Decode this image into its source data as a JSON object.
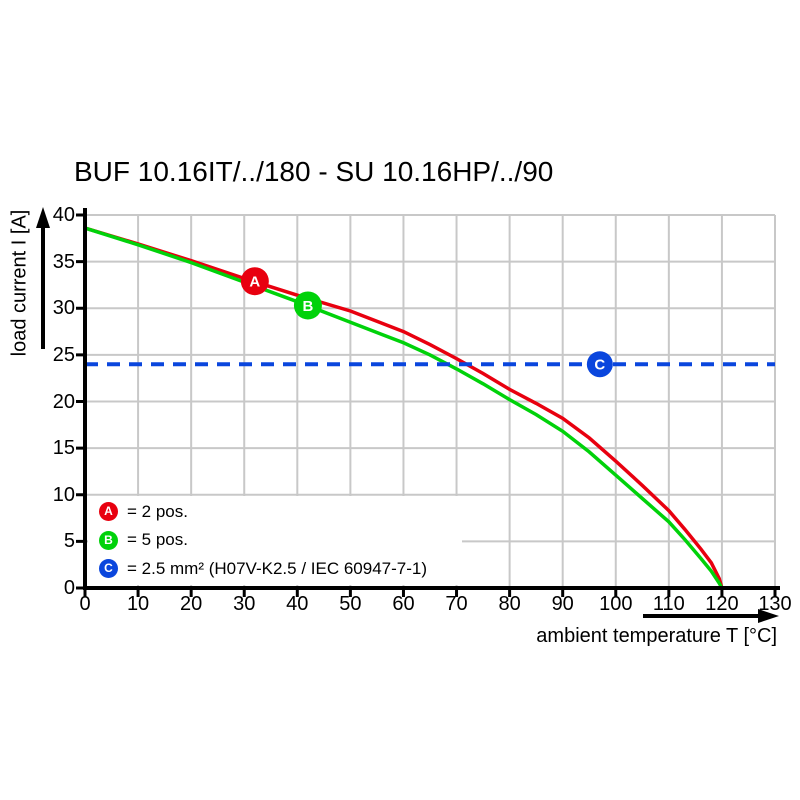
{
  "colors": {
    "red": "#e8000f",
    "green": "#00d20a",
    "blue": "#0a46dd",
    "grid": "#c8c8c8",
    "axis": "#000000",
    "background": "#ffffff"
  },
  "chart_data": {
    "type": "line",
    "title": "BUF 10.16IT/../180 - SU 10.16HP/../90",
    "xlabel": "ambient temperature T [°C]",
    "ylabel": "load current I [A]",
    "xlim": [
      0,
      130
    ],
    "ylim": [
      0,
      40
    ],
    "x_ticks": [
      0,
      10,
      20,
      30,
      40,
      50,
      60,
      70,
      80,
      90,
      100,
      110,
      120,
      130
    ],
    "y_ticks": [
      0,
      5,
      10,
      15,
      20,
      25,
      30,
      35,
      40
    ],
    "grid": true,
    "legend_position": "inside-bottom-left",
    "series": [
      {
        "name": "A",
        "legend": "= 2 pos.",
        "color": "#e8000f",
        "style": "solid",
        "points": [
          [
            0,
            38.6
          ],
          [
            10,
            36.9
          ],
          [
            20,
            35.1
          ],
          [
            30,
            33.2
          ],
          [
            40,
            31.4
          ],
          [
            50,
            29.7
          ],
          [
            60,
            27.5
          ],
          [
            65,
            26.1
          ],
          [
            70,
            24.6
          ],
          [
            75,
            23.0
          ],
          [
            80,
            21.3
          ],
          [
            85,
            19.8
          ],
          [
            90,
            18.2
          ],
          [
            95,
            16.1
          ],
          [
            100,
            13.6
          ],
          [
            105,
            11.0
          ],
          [
            110,
            8.3
          ],
          [
            113,
            6.3
          ],
          [
            116,
            4.2
          ],
          [
            118,
            2.7
          ],
          [
            119.5,
            1.0
          ],
          [
            120,
            0
          ]
        ]
      },
      {
        "name": "B",
        "legend": "= 5 pos.",
        "color": "#00d20a",
        "style": "solid",
        "points": [
          [
            0,
            38.6
          ],
          [
            10,
            36.8
          ],
          [
            20,
            34.9
          ],
          [
            30,
            32.8
          ],
          [
            40,
            30.7
          ],
          [
            50,
            28.5
          ],
          [
            60,
            26.3
          ],
          [
            65,
            25.0
          ],
          [
            70,
            23.5
          ],
          [
            75,
            21.9
          ],
          [
            80,
            20.2
          ],
          [
            85,
            18.6
          ],
          [
            90,
            16.8
          ],
          [
            95,
            14.6
          ],
          [
            100,
            12.1
          ],
          [
            105,
            9.6
          ],
          [
            110,
            7.1
          ],
          [
            113,
            5.2
          ],
          [
            116,
            3.2
          ],
          [
            118,
            1.8
          ],
          [
            119.5,
            0.5
          ],
          [
            120,
            0
          ]
        ]
      },
      {
        "name": "C",
        "legend": "= 2.5 mm² (H07V-K2.5 / IEC 60947-7-1)",
        "color": "#0a46dd",
        "style": "dashed",
        "points": [
          [
            0,
            24
          ],
          [
            130,
            24
          ]
        ]
      }
    ],
    "markers": [
      {
        "letter": "A",
        "x": 32,
        "y": 32.9,
        "r": 14,
        "color": "#e8000f"
      },
      {
        "letter": "B",
        "x": 42,
        "y": 30.3,
        "r": 14,
        "color": "#00d20a"
      },
      {
        "letter": "C",
        "x": 97,
        "y": 24.0,
        "r": 13,
        "color": "#0a46dd"
      }
    ]
  }
}
